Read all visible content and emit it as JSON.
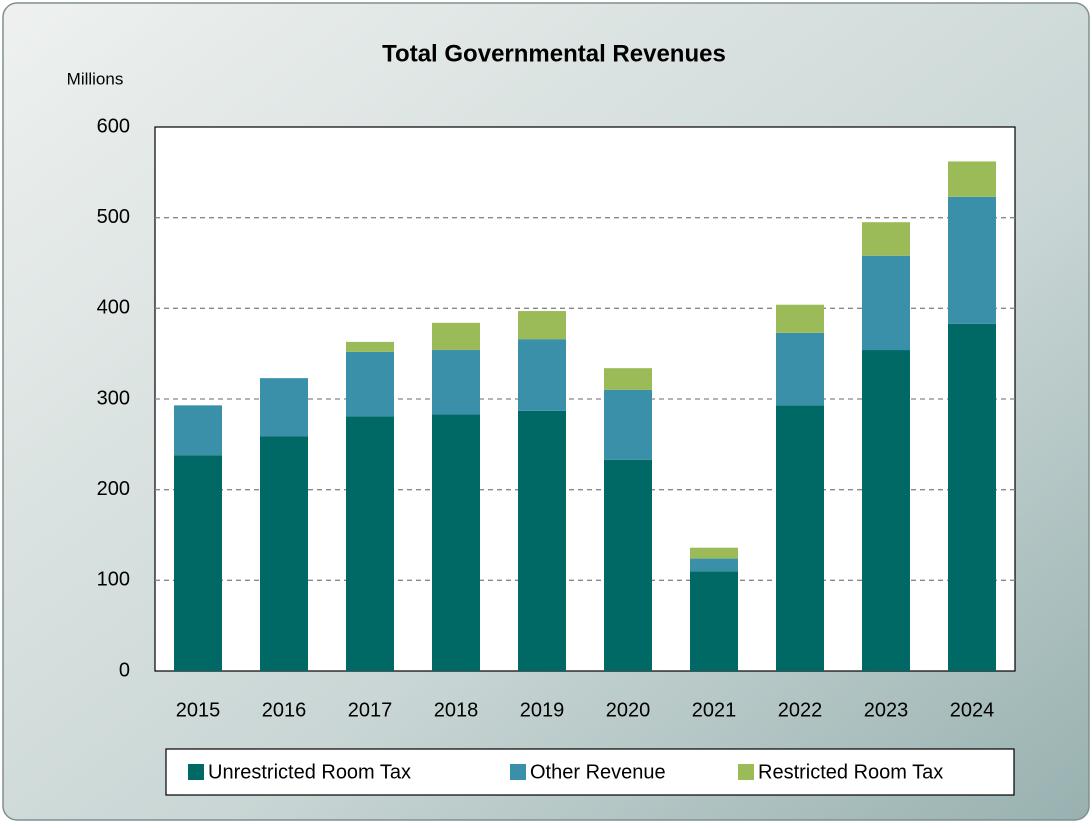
{
  "chart_data": {
    "type": "stacked_bar",
    "title": "Total Governmental Revenues",
    "y_label": "Millions",
    "categories": [
      "2015",
      "2016",
      "2017",
      "2018",
      "2019",
      "2020",
      "2021",
      "2022",
      "2023",
      "2024"
    ],
    "series": [
      {
        "name": "Unrestricted Room Tax",
        "color": "#006965",
        "values": [
          238,
          259,
          281,
          283,
          287,
          233,
          110,
          293,
          354,
          383
        ]
      },
      {
        "name": "Other Revenue",
        "color": "#3a8fa9",
        "values": [
          55,
          64,
          71,
          71,
          79,
          77,
          14,
          80,
          104,
          140
        ]
      },
      {
        "name": "Restricted Room Tax",
        "color": "#9bbb59",
        "values": [
          0,
          0,
          11,
          30,
          31,
          24,
          12,
          31,
          37,
          39
        ]
      }
    ],
    "ylim": [
      0,
      600
    ],
    "yticks": [
      0,
      100,
      200,
      300,
      400,
      500,
      600
    ],
    "grid": true,
    "legend": "bottom"
  }
}
